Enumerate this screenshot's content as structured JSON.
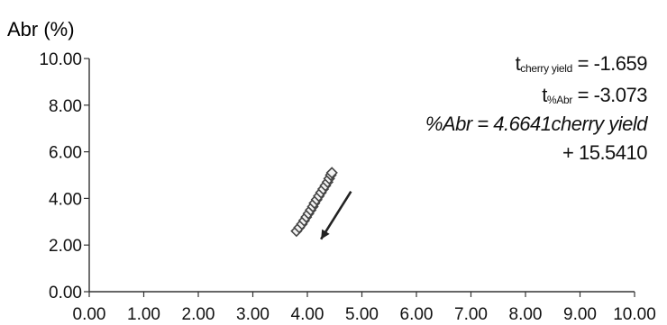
{
  "chart_data": {
    "type": "scatter",
    "ylabel": "Abr (%)",
    "xlabel": "",
    "xlim": [
      0,
      10
    ],
    "ylim": [
      0,
      10
    ],
    "x_ticks": [
      "0.00",
      "1.00",
      "2.00",
      "3.00",
      "4.00",
      "5.00",
      "6.00",
      "7.00",
      "8.00",
      "9.00",
      "10.00"
    ],
    "y_ticks": [
      "0.00",
      "2.00",
      "4.00",
      "6.00",
      "8.00",
      "10.00"
    ],
    "grid": false,
    "marker_color": "#444444",
    "series": [
      {
        "marker": "diamond",
        "points": [
          [
            3.8,
            2.6
          ],
          [
            3.85,
            2.75
          ],
          [
            3.9,
            2.9
          ],
          [
            3.94,
            3.05
          ],
          [
            3.98,
            3.2
          ],
          [
            4.02,
            3.35
          ],
          [
            4.06,
            3.5
          ],
          [
            4.1,
            3.65
          ],
          [
            4.13,
            3.8
          ],
          [
            4.17,
            3.95
          ],
          [
            4.21,
            4.1
          ],
          [
            4.25,
            4.25
          ],
          [
            4.29,
            4.4
          ],
          [
            4.33,
            4.55
          ],
          [
            4.37,
            4.7
          ],
          [
            4.4,
            4.85
          ],
          [
            4.43,
            5.0
          ],
          [
            4.45,
            5.1
          ]
        ]
      }
    ],
    "arrow": {
      "from": [
        4.8,
        4.3
      ],
      "to": [
        4.25,
        2.25
      ]
    },
    "annotations": {
      "t_cherry_main": "t",
      "t_cherry_sub": "cherry yield",
      "t_cherry_value": "= -1.659",
      "t_abr_main": "t",
      "t_abr_sub": "%Abr",
      "t_abr_value": "=  -3.073",
      "equation_line1": "%Abr = 4.6641cherry yield",
      "equation_line2": "+ 15.5410"
    }
  }
}
